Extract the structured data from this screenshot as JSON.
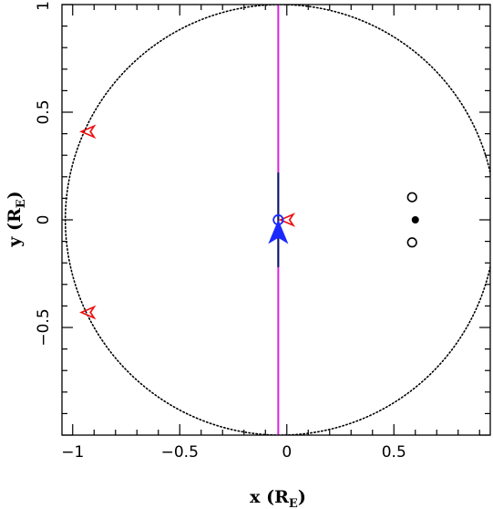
{
  "chart_data": {
    "type": "scatter",
    "title": "",
    "xlabel": "x (R_E)",
    "ylabel": "y (R_E)",
    "xlabel_parts": {
      "main": "x (R",
      "sub": "E",
      "end": ")"
    },
    "ylabel_parts": {
      "main": "y (R",
      "sub": "E",
      "end": ")"
    },
    "xlim": [
      -1.05,
      0.95
    ],
    "ylim": [
      -1.0,
      1.0
    ],
    "x_ticks": [
      {
        "value": -1,
        "label": "−1"
      },
      {
        "value": -0.5,
        "label": "−0.5"
      },
      {
        "value": 0,
        "label": "0"
      },
      {
        "value": 0.5,
        "label": "0.5"
      }
    ],
    "y_ticks": [
      {
        "value": -0.5,
        "label": "−0.5"
      },
      {
        "value": 0,
        "label": "0"
      },
      {
        "value": 0.5,
        "label": "0.5"
      },
      {
        "value": 1,
        "label": "1"
      }
    ],
    "grid": false,
    "einstein_ring": {
      "cx": -0.03,
      "cy": 0.0,
      "r": 1.0,
      "style": "dotted",
      "color": "#000000"
    },
    "source_trajectory": {
      "x": -0.04,
      "color": "#dd22dd"
    },
    "caustic_segment": {
      "x": -0.04,
      "y_from": -0.22,
      "y_to": 0.22,
      "color": "#001a66"
    },
    "lens_points": [
      {
        "x": 0.585,
        "y": 0.105,
        "filled": false
      },
      {
        "x": 0.6,
        "y": 0.0,
        "filled": true
      },
      {
        "x": 0.585,
        "y": -0.105,
        "filled": false
      }
    ],
    "source_circle": {
      "x": -0.04,
      "y": 0.0,
      "r": 0.022,
      "color": "#1a2aff"
    },
    "direction_arrow": {
      "x": -0.04,
      "y": -0.06,
      "direction": "up",
      "color": "#1a2aff"
    },
    "image_markers": [
      {
        "x": -0.93,
        "y": 0.41,
        "color": "#ee1111"
      },
      {
        "x": -0.93,
        "y": -0.43,
        "color": "#ee1111"
      },
      {
        "x": 0.0,
        "y": 0.0,
        "color": "#ee1111"
      }
    ]
  }
}
